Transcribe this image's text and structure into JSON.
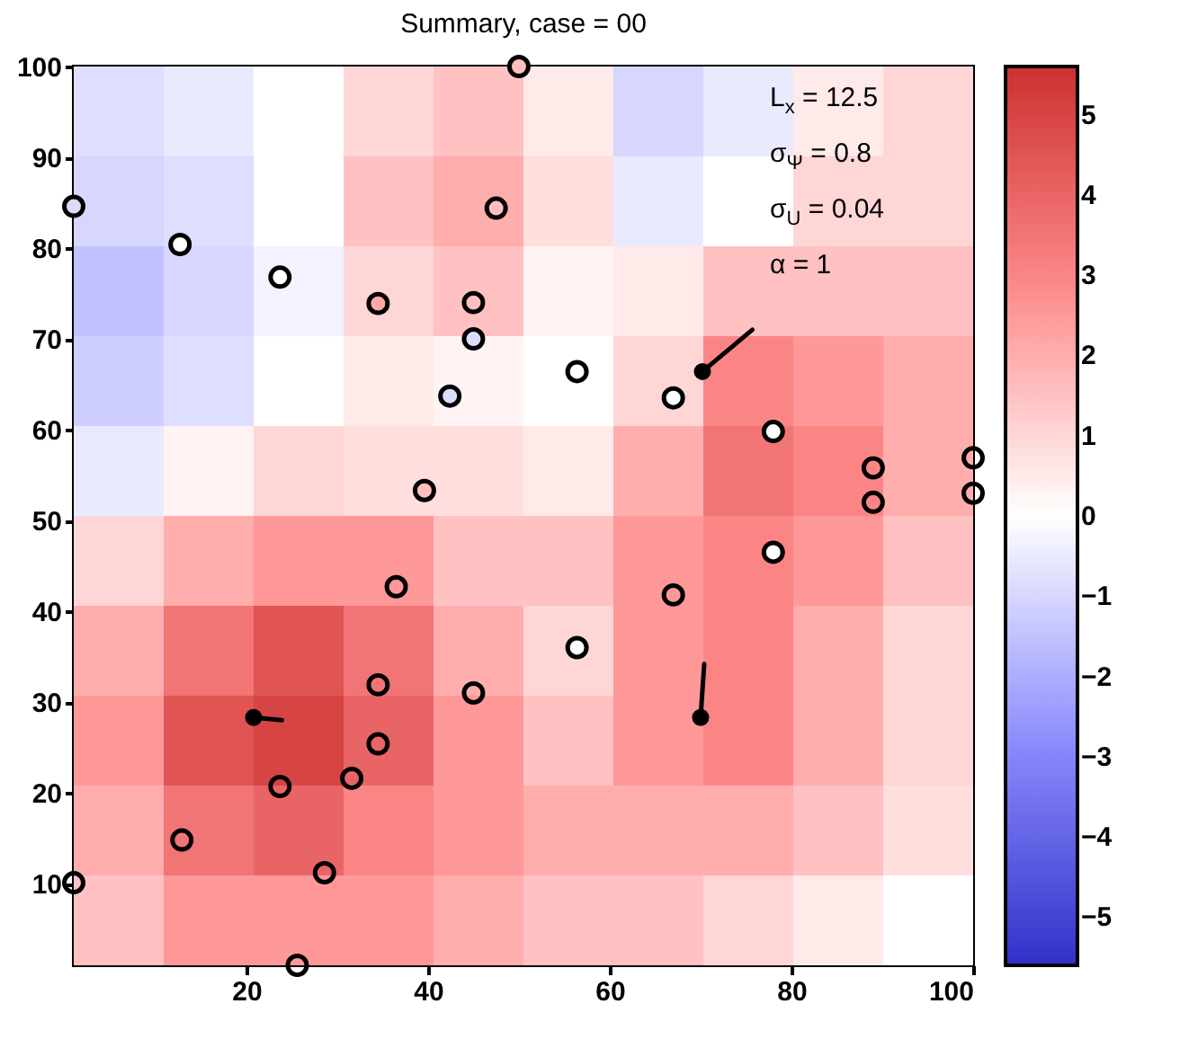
{
  "chart_data": {
    "type": "heatmap",
    "title": "Summary, case = 00",
    "xlim": [
      1,
      100
    ],
    "ylim": [
      1,
      100
    ],
    "xticks": [
      20,
      40,
      60,
      80,
      100
    ],
    "yticks": [
      10,
      20,
      30,
      40,
      50,
      60,
      70,
      80,
      90,
      100
    ],
    "clim": [
      -5.6,
      5.6
    ],
    "cticks": [
      -5,
      -4,
      -3,
      -2,
      -1,
      0,
      1,
      2,
      3,
      4,
      5
    ],
    "grid": false,
    "cells": [
      [
        -0.8,
        -0.5,
        0,
        1,
        1.5,
        0.5,
        -1,
        -0.5,
        0.5,
        1
      ],
      [
        -1,
        -0.8,
        0,
        1.5,
        2,
        0.8,
        -0.5,
        0,
        1,
        1
      ],
      [
        -1.5,
        -1,
        -0.3,
        1,
        1.5,
        0.3,
        0.5,
        1.5,
        1.5,
        1.5
      ],
      [
        -1.2,
        -0.8,
        0,
        0.5,
        0.3,
        0,
        1,
        3,
        2.5,
        2
      ],
      [
        -0.5,
        0.3,
        1,
        0.8,
        0.8,
        0.5,
        2,
        3.5,
        3,
        2
      ],
      [
        1,
        2,
        2.5,
        2.5,
        1.5,
        1.5,
        2.5,
        3,
        2.5,
        1.5
      ],
      [
        2,
        3.5,
        4.5,
        3.5,
        2,
        1,
        2.5,
        3,
        2,
        1
      ],
      [
        2.5,
        4.5,
        5,
        4,
        2.5,
        1.5,
        2.5,
        3,
        2,
        1
      ],
      [
        2,
        3.5,
        4,
        3,
        2.5,
        2,
        2,
        2,
        1.5,
        0.8
      ],
      [
        1.5,
        2.5,
        2.5,
        2.5,
        2,
        1.5,
        1.5,
        1,
        0.5,
        0
      ]
    ],
    "series": [
      {
        "type": "scatter",
        "color": "#000000",
        "marker": "circle",
        "x": [
          1,
          12.7,
          23.7,
          50,
          34.5,
          45,
          47.5,
          45,
          42.4,
          56.4,
          67,
          78,
          89,
          89,
          100,
          100,
          78,
          39.6,
          67,
          56.4,
          36.5,
          45,
          34.5,
          34.5,
          31.6,
          23.7,
          12.9,
          28.6,
          1,
          25.6
        ],
        "values": [
          84.6,
          80.4,
          76.8,
          100,
          73.9,
          74,
          84.4,
          70,
          63.7,
          66.4,
          63.5,
          59.8,
          55.8,
          52,
          56.9,
          53,
          46.5,
          53.3,
          41.8,
          36,
          42.7,
          31,
          31.9,
          25.4,
          21.6,
          20.7,
          14.8,
          11.2,
          10.1,
          1
        ],
        "colors": [
          "#dcdcfa",
          "#ffffff",
          "#ffffff",
          "#ffbfbf",
          "#ffa8a8",
          "#ffbfbf",
          "#ffbfbf",
          "#dcdcfa",
          "#dcdcfa",
          "#ffffff",
          "#ffffff",
          "#ffffff",
          null,
          null,
          null,
          null,
          "#ffffff",
          "#ffbfbf",
          null,
          "#ffffff",
          null,
          null,
          null,
          null,
          null,
          null,
          null,
          null,
          null,
          null
        ]
      },
      {
        "type": "scatter",
        "color": "#000000",
        "marker": "circle",
        "x": [
          20.8,
          70.2,
          70
        ],
        "values": [
          28.3,
          66.4,
          28.3
        ]
      },
      {
        "type": "line",
        "color": "#000000",
        "x": [
          70.2,
          75.7
        ],
        "values": [
          66.4,
          71
        ]
      },
      {
        "type": "line",
        "color": "#000000",
        "x": [
          70,
          70.4
        ],
        "values": [
          28.3,
          34.2
        ]
      },
      {
        "type": "line",
        "color": "#000000",
        "x": [
          20.8,
          23.9
        ],
        "values": [
          28.3,
          28
        ]
      }
    ],
    "annotations": [
      "L$_{x}$ = 12.5",
      "σ$_{Ψ}$ = 0.8",
      "σ$_{U}$ = 0.04",
      "α = 1"
    ]
  }
}
